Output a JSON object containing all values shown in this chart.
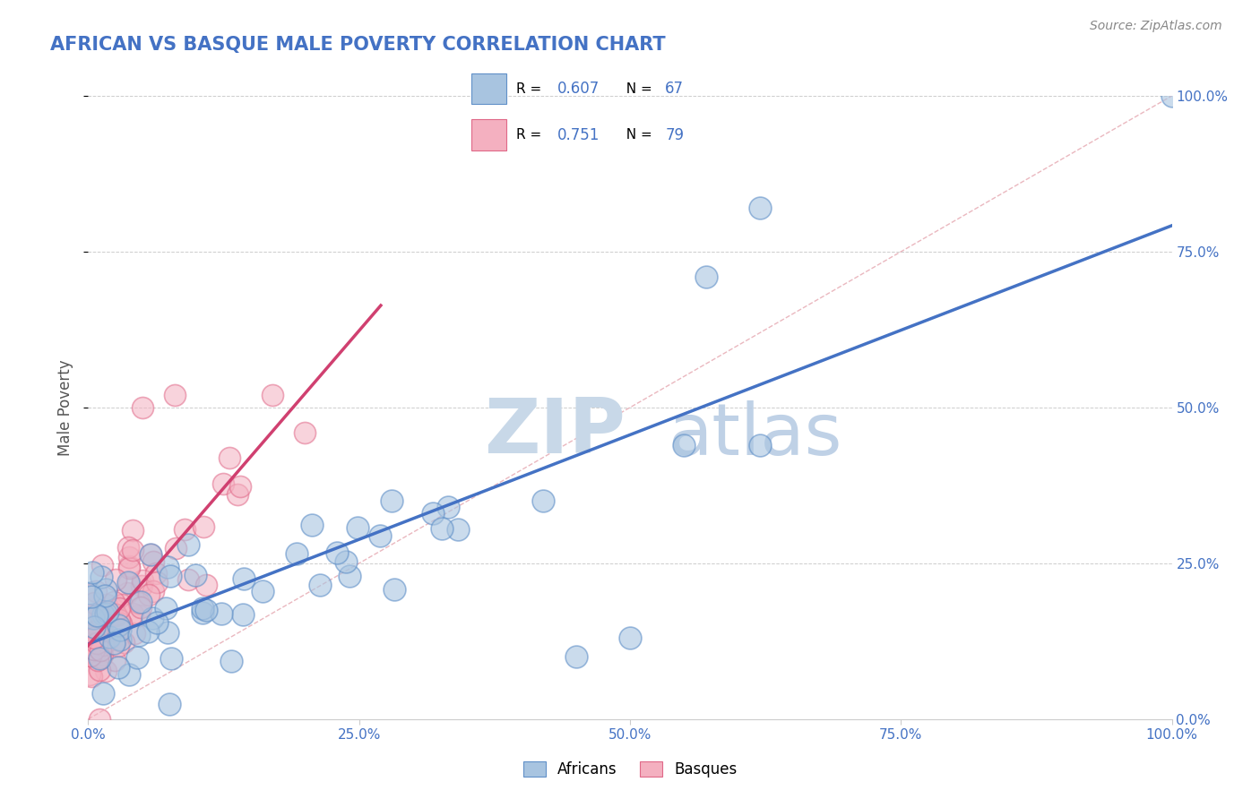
{
  "title": "AFRICAN VS BASQUE MALE POVERTY CORRELATION CHART",
  "source": "Source: ZipAtlas.com",
  "ylabel": "Male Poverty",
  "legend_africans": "Africans",
  "legend_basques": "Basques",
  "r_africans": "0.607",
  "n_africans": "67",
  "r_basques": "0.751",
  "n_basques": "79",
  "color_africans_fill": "#a8c4e0",
  "color_africans_edge": "#6090c8",
  "color_basques_fill": "#f4b0c0",
  "color_basques_edge": "#e06888",
  "color_trend_africans": "#4472c4",
  "color_trend_basques": "#d04070",
  "color_diagonal": "#e8b0b8",
  "title_color": "#4472c4",
  "source_color": "#888888",
  "axis_label_color": "#4472c4",
  "legend_r_color": "#4472c4",
  "background_color": "#ffffff",
  "watermark_zip_color": "#c8d8e8",
  "watermark_atlas_color": "#c8d8e8"
}
